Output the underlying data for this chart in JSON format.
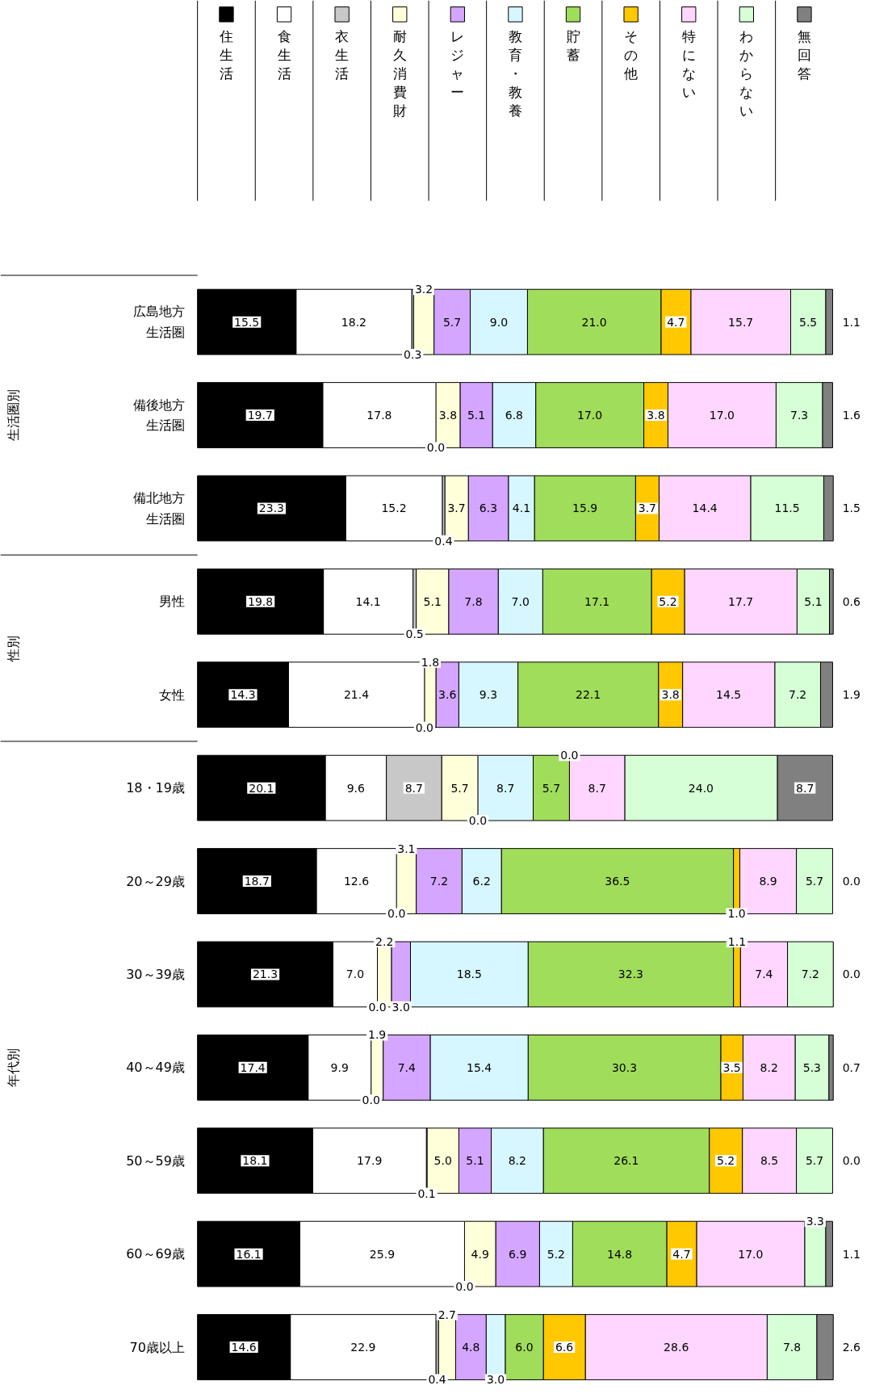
{
  "chart_data": {
    "type": "bar",
    "orientation": "horizontal",
    "stacked": true,
    "legend": "top",
    "grid": false,
    "categories": [
      "広島地方生活圏",
      "備後地方生活圏",
      "備北地方生活圏",
      "男性",
      "女性",
      "18・19歳",
      "20～29歳",
      "30～39歳",
      "40～49歳",
      "50～59歳",
      "60～69歳",
      "70歳以上"
    ],
    "series": [
      {
        "name": "住生活",
        "color": "#000000",
        "values": [
          15.5,
          19.7,
          23.3,
          19.8,
          14.3,
          20.1,
          18.7,
          21.3,
          17.4,
          18.1,
          16.1,
          14.6
        ],
        "value_labels": [
          "15.5",
          "19.7",
          "23.3",
          "19.8",
          "14.3",
          "20.1",
          "18.7",
          "21.3",
          "17.4",
          "18.1",
          "16.1",
          "14.6"
        ]
      },
      {
        "name": "食生活",
        "color": "#ffffff",
        "values": [
          18.2,
          17.8,
          15.2,
          14.1,
          21.4,
          9.6,
          12.6,
          7.0,
          9.9,
          17.9,
          25.9,
          22.9
        ],
        "value_labels": [
          "18.2",
          "17.8",
          "15.2",
          "14.1",
          "21.4",
          "9.6",
          "12.6",
          "7.0",
          "9.9",
          "17.9",
          "25.9",
          "22.9"
        ]
      },
      {
        "name": "衣生活",
        "color": "#c8c8c8",
        "values": [
          0.3,
          0.0,
          0.4,
          0.5,
          0.0,
          8.7,
          0.0,
          0.0,
          0.0,
          0.1,
          0.0,
          0.4
        ],
        "value_labels": [
          "0.3",
          "0.0",
          "0.4",
          "0.5",
          "0.0",
          "8.7",
          "0.0",
          "0.0",
          "0.0",
          "0.1",
          "0.0",
          "0.4"
        ]
      },
      {
        "name": "耐久消費財",
        "color": "#ffffd9",
        "values": [
          3.2,
          3.8,
          3.7,
          5.1,
          1.8,
          5.7,
          3.1,
          2.2,
          1.9,
          5.0,
          4.9,
          2.7
        ],
        "value_labels": [
          "3.2",
          "3.8",
          "3.7",
          "5.1",
          "1.8",
          "5.7",
          "3.1",
          "2.2",
          "1.9",
          "5.0",
          "4.9",
          "2.7"
        ]
      },
      {
        "name": "レジャー",
        "color": "#d4a6ff",
        "values": [
          5.7,
          5.1,
          6.3,
          7.8,
          3.6,
          0.0,
          7.2,
          3.0,
          7.4,
          5.1,
          6.9,
          4.8
        ],
        "value_labels": [
          "5.7",
          "5.1",
          "6.3",
          "7.8",
          "3.6",
          "0.0",
          "7.2",
          "3.0",
          "7.4",
          "5.1",
          "6.9",
          "4.8"
        ]
      },
      {
        "name": "教育・教養",
        "color": "#d6f7ff",
        "values": [
          9.0,
          6.8,
          4.1,
          7.0,
          9.3,
          8.7,
          6.2,
          18.5,
          15.4,
          8.2,
          5.2,
          3.0
        ],
        "value_labels": [
          "9.0",
          "6.8",
          "4.1",
          "7.0",
          "9.3",
          "8.7",
          "6.2",
          "18.5",
          "15.4",
          "8.2",
          "5.2",
          "3.0"
        ]
      },
      {
        "name": "貯蓄",
        "color": "#a0dd5a",
        "values": [
          21.0,
          17.0,
          15.9,
          17.1,
          22.1,
          5.7,
          36.5,
          32.3,
          30.3,
          26.1,
          14.8,
          6.0
        ],
        "value_labels": [
          "21.0",
          "17.0",
          "15.9",
          "17.1",
          "22.1",
          "5.7",
          "36.5",
          "32.3",
          "30.3",
          "26.1",
          "14.8",
          "6.0"
        ]
      },
      {
        "name": "その他",
        "color": "#ffc800",
        "values": [
          4.7,
          3.8,
          3.7,
          5.2,
          3.8,
          0.0,
          1.0,
          1.1,
          3.5,
          5.2,
          4.7,
          6.6
        ],
        "value_labels": [
          "4.7",
          "3.8",
          "3.7",
          "5.2",
          "3.8",
          "0.0",
          "1.0",
          "1.1",
          "3.5",
          "5.2",
          "4.7",
          "6.6"
        ]
      },
      {
        "name": "特にない",
        "color": "#ffd6ff",
        "values": [
          15.7,
          17.0,
          14.4,
          17.7,
          14.5,
          8.7,
          8.9,
          7.4,
          8.2,
          8.5,
          17.0,
          28.6
        ],
        "value_labels": [
          "15.7",
          "17.0",
          "14.4",
          "17.7",
          "14.5",
          "8.7",
          "8.9",
          "7.4",
          "8.2",
          "8.5",
          "17.0",
          "28.6"
        ]
      },
      {
        "name": "わからない",
        "color": "#d6ffd6",
        "values": [
          5.5,
          7.3,
          11.5,
          5.1,
          7.2,
          24.0,
          5.7,
          7.2,
          5.3,
          5.7,
          3.3,
          7.8
        ],
        "value_labels": [
          "5.5",
          "7.3",
          "11.5",
          "5.1",
          "7.2",
          "24.0",
          "5.7",
          "7.2",
          "5.3",
          "5.7",
          "3.3",
          "7.8"
        ]
      },
      {
        "name": "無回答",
        "color": "#808080",
        "values": [
          1.1,
          1.6,
          1.5,
          0.6,
          1.9,
          8.7,
          0.0,
          0.0,
          0.7,
          0.0,
          1.1,
          2.6
        ],
        "value_labels": [
          "1.1",
          "1.6",
          "1.5",
          "0.6",
          "1.9",
          "8.7",
          "0.0",
          "0.0",
          "0.7",
          "0.0",
          "1.1",
          "2.6"
        ]
      }
    ],
    "annotations": [
      "生活圏別",
      "性別",
      "年代別"
    ]
  }
}
